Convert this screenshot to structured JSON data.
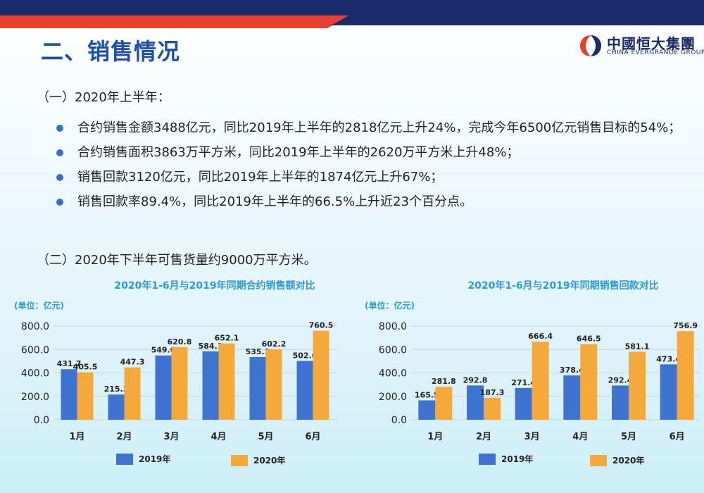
{
  "page": {
    "title": "二、销售情况",
    "logo_cn": "中國恒大集團",
    "logo_en": "CHINA EVERGRANDE GROUP"
  },
  "section1": {
    "heading": "（一）2020年上半年：",
    "bullets": [
      "合约销售金额3488亿元，同比2019年上半年的2818亿元上升24%，完成今年6500亿元销售目标的54%；",
      "合约销售面积3863万平方米，同比2019年上半年的2620万平方米上升48%；",
      "销售回款3120亿元，同比2019年上半年的1874亿元上升67%；",
      "销售回款率89.4%，同比2019年上半年的66.5%上升近23个百分点。"
    ]
  },
  "section2": {
    "heading": "（二）2020年下半年可售货量约9000万平方米。"
  },
  "colors": {
    "series2019": "#3f73d2",
    "series2020": "#f5a93a",
    "title": "#2e9ad6"
  },
  "chart_data": [
    {
      "type": "bar",
      "title": "2020年1-6月与2019年同期合约销售额对比",
      "unit_label": "(单位：亿元)",
      "categories": [
        "1月",
        "2月",
        "3月",
        "4月",
        "5月",
        "6月"
      ],
      "series": [
        {
          "name": "2019年",
          "values": [
            431.7,
            215.3,
            549.0,
            584.1,
            535.3,
            502.6
          ],
          "labels": [
            "431.7",
            "215.3",
            "549.0",
            "584.1",
            "535.3",
            "502.6"
          ]
        },
        {
          "name": "2020年",
          "values": [
            405.5,
            447.3,
            620.8,
            652.1,
            602.2,
            760.5
          ],
          "labels": [
            "405.5",
            "447.3",
            "620.8",
            "652.1",
            "602.2",
            "760.5"
          ]
        }
      ],
      "yticks": [
        "0.0",
        "200.0",
        "400.0",
        "600.0",
        "800.0"
      ],
      "ylim": [
        0,
        800
      ],
      "grid": true,
      "legend": "bottom"
    },
    {
      "type": "bar",
      "title": "2020年1-6月与2019年同期销售回款对比",
      "unit_label": "(单位：亿元)",
      "categories": [
        "1月",
        "2月",
        "3月",
        "4月",
        "5月",
        "6月"
      ],
      "series": [
        {
          "name": "2019年",
          "values": [
            165.5,
            292.8,
            271.4,
            378.4,
            292.4,
            473.4
          ],
          "labels": [
            "165.5",
            "292.8",
            "271.4",
            "378.4",
            "292.4",
            "473.4"
          ]
        },
        {
          "name": "2020年",
          "values": [
            281.8,
            187.3,
            666.4,
            646.5,
            581.1,
            756.9
          ],
          "labels": [
            "281.8",
            "187.3",
            "666.4",
            "646.5",
            "581.1",
            "756.9"
          ]
        }
      ],
      "yticks": [
        "0.0",
        "200.0",
        "400.0",
        "600.0",
        "800.0"
      ],
      "ylim": [
        0,
        800
      ],
      "grid": true,
      "legend": "bottom"
    }
  ]
}
